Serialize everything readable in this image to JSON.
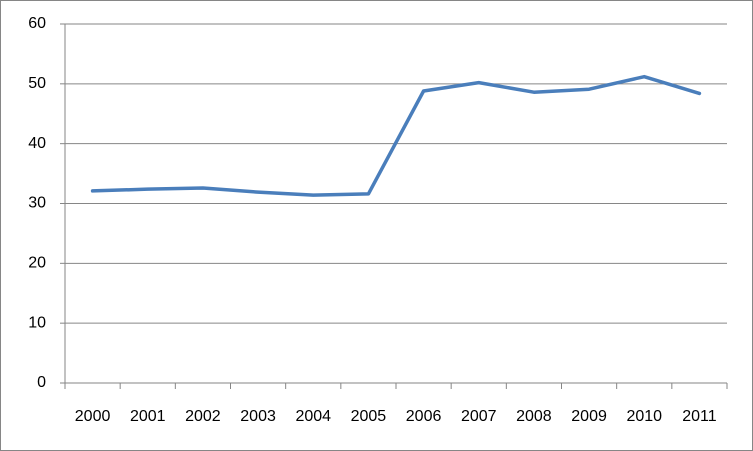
{
  "chart_data": {
    "type": "line",
    "categories": [
      "2000",
      "2001",
      "2002",
      "2003",
      "2004",
      "2005",
      "2006",
      "2007",
      "2008",
      "2009",
      "2010",
      "2011"
    ],
    "series": [
      {
        "color": "#4a7ebb",
        "values": [
          32.1,
          32.4,
          32.6,
          31.9,
          31.4,
          31.6,
          48.8,
          50.2,
          48.6,
          49.1,
          51.2,
          48.4
        ]
      }
    ],
    "ylim": [
      0,
      60
    ],
    "yticks": [
      0,
      10,
      20,
      30,
      40,
      50,
      60
    ],
    "grid": true
  }
}
